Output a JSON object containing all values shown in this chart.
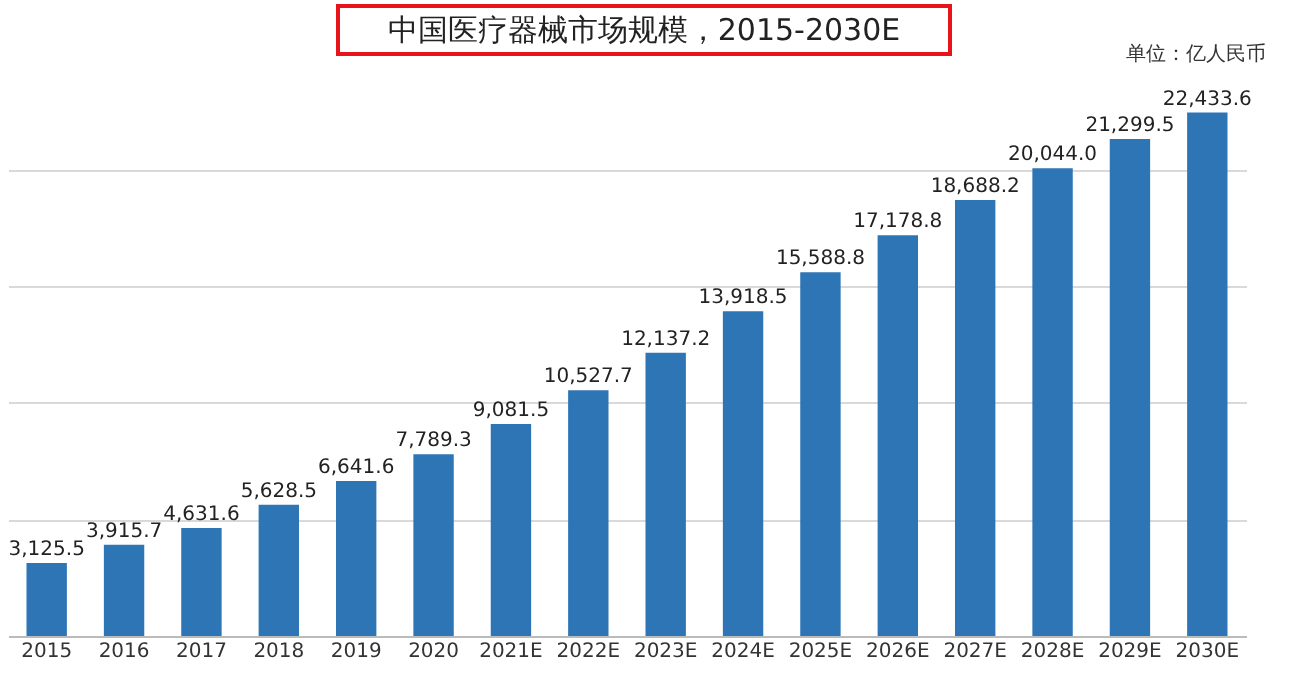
{
  "chart_data": {
    "type": "bar",
    "title": "中国医疗器械市场规模，2015-2030E",
    "annotations": [
      "单位：亿人民币"
    ],
    "categories": [
      "2015",
      "2016",
      "2017",
      "2018",
      "2019",
      "2020",
      "2021E",
      "2022E",
      "2023E",
      "2024E",
      "2025E",
      "2026E",
      "2027E",
      "2028E",
      "2029E",
      "2030E"
    ],
    "values": [
      3125.5,
      3915.7,
      4631.6,
      5628.5,
      6641.6,
      7789.3,
      9081.5,
      10527.7,
      12137.2,
      13918.5,
      15588.8,
      17178.8,
      18688.2,
      20044.0,
      21299.5,
      22433.6
    ],
    "value_labels": [
      "3,125.5",
      "3,915.7",
      "4,631.6",
      "5,628.5",
      "6,641.6",
      "7,789.3",
      "9,081.5",
      "10,527.7",
      "12,137.2",
      "13,918.5",
      "15,588.8",
      "17,178.8",
      "18,688.2",
      "20,044.0",
      "21,299.5",
      "22,433.6"
    ],
    "color": "#2e75b6",
    "grid": "y",
    "tick_labels": "x"
  }
}
